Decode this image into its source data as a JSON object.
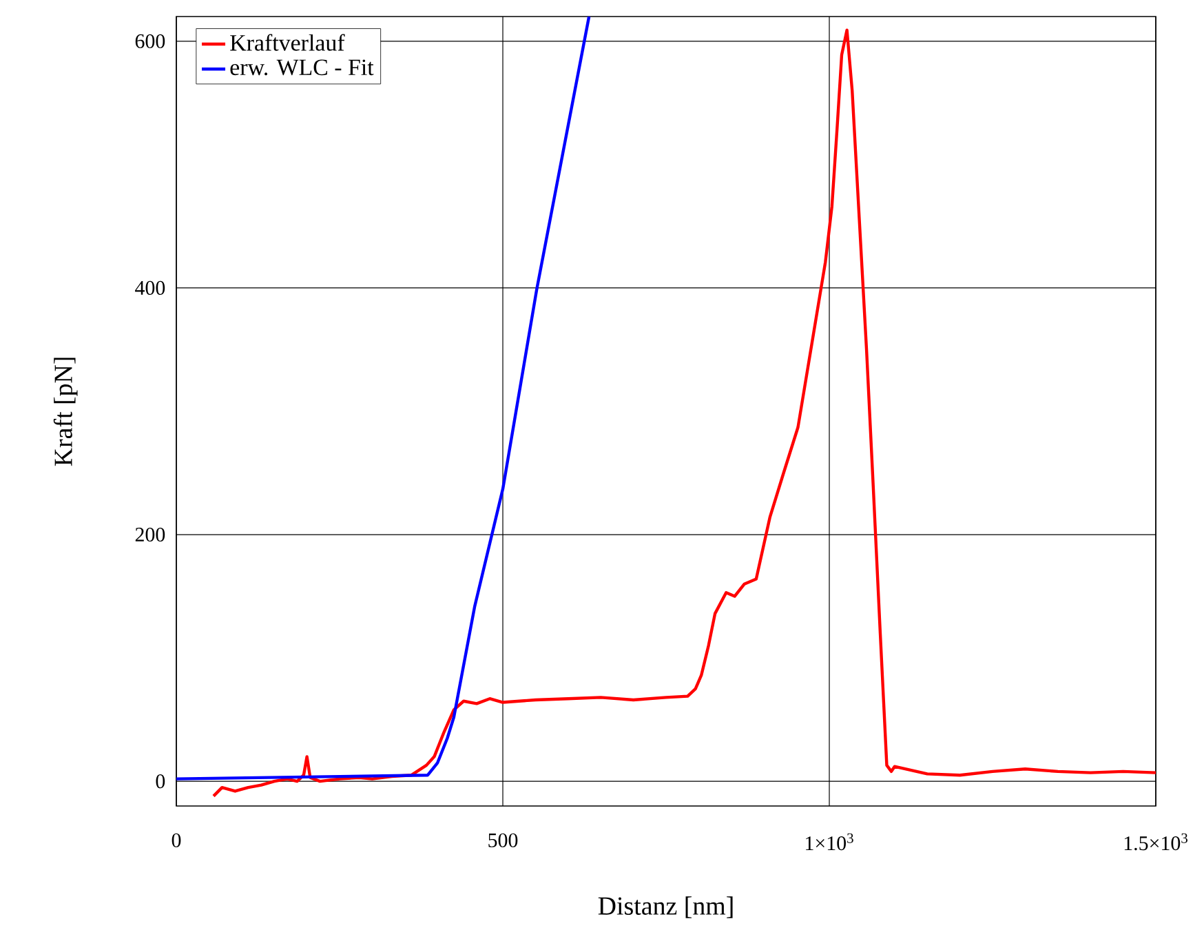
{
  "chart_data": {
    "type": "line",
    "xlabel": "Distanz [nm]",
    "ylabel": "Kraft [pN]",
    "xlim": [
      0,
      1500
    ],
    "ylim": [
      -20,
      620
    ],
    "xticks": [
      0,
      500,
      {
        "value": 1000,
        "label": "1×10$^{3}$"
      },
      {
        "value": 1500,
        "label": "1.5×10$^{3}$"
      }
    ],
    "yticks": [
      0,
      200,
      400,
      600
    ],
    "grid": true,
    "legend": "top left",
    "series": [
      {
        "name": "Kraftverlauf",
        "color": "#ff0000",
        "x": [
          57,
          70,
          90,
          110,
          130,
          150,
          170,
          185,
          195,
          200,
          205,
          220,
          250,
          280,
          300,
          330,
          360,
          383,
          395,
          410,
          425,
          440,
          460,
          480,
          500,
          550,
          600,
          650,
          700,
          750,
          783,
          795,
          804,
          815,
          825,
          842,
          855,
          870,
          888,
          909,
          930,
          952,
          973,
          994,
          1004,
          1012,
          1019,
          1027,
          1035,
          1046,
          1057,
          1067,
          1078,
          1088,
          1095,
          1100,
          1150,
          1200,
          1250,
          1300,
          1350,
          1400,
          1450,
          1500
        ],
        "values": [
          -12,
          -5,
          -8,
          -5,
          -3,
          0,
          2,
          0,
          5,
          20,
          3,
          0,
          2,
          3,
          2,
          4,
          5,
          13,
          20,
          40,
          58,
          65,
          63,
          67,
          64,
          66,
          67,
          68,
          66,
          68,
          69,
          75,
          86,
          110,
          136,
          153,
          150,
          160,
          164,
          214,
          250,
          287,
          354,
          421,
          466,
          530,
          589,
          609,
          560,
          455,
          350,
          242,
          120,
          13,
          8,
          12,
          6,
          5,
          8,
          10,
          8,
          7,
          8,
          7
        ]
      },
      {
        "name": "erw. WLC - Fit",
        "color": "#0000ff",
        "x": [
          0,
          385,
          400,
          415,
          425,
          457,
          500,
          552,
          632
        ],
        "values": [
          2,
          5,
          15,
          35,
          52,
          142,
          237,
          399,
          620
        ]
      }
    ]
  }
}
